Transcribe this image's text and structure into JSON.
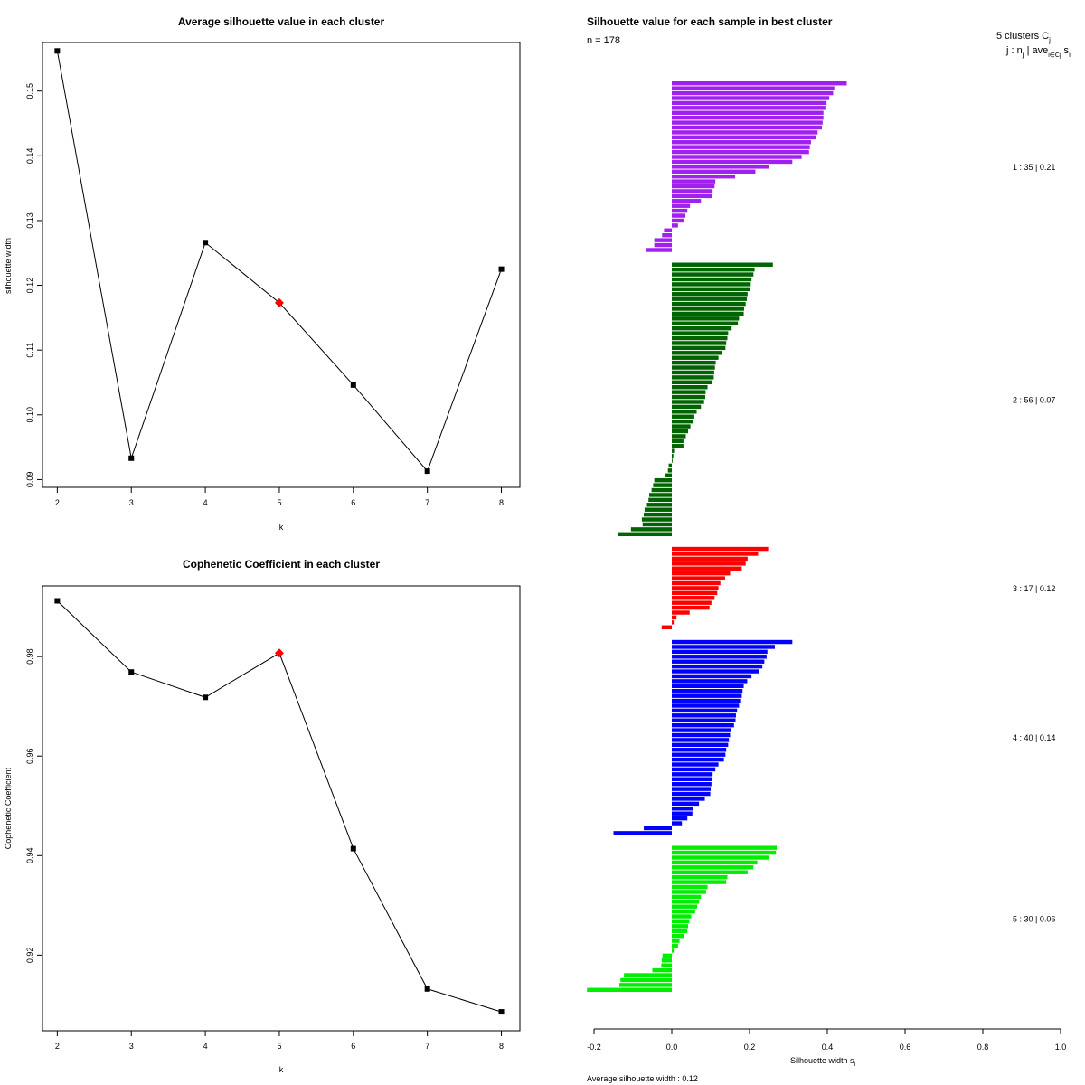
{
  "chart_data": [
    {
      "type": "line",
      "title": "Average silhouette value in each cluster",
      "xlabel": "k",
      "ylabel": "silhouette width",
      "x": [
        2,
        3,
        4,
        5,
        6,
        7,
        8
      ],
      "values": [
        0.1562,
        0.0933,
        0.1266,
        0.1173,
        0.1046,
        0.0913,
        0.1225
      ],
      "highlight_x": 5,
      "xlim": [
        1.8,
        8.25
      ],
      "ylim": [
        0.0888,
        0.1575
      ],
      "xticks": [
        "2",
        "3",
        "4",
        "5",
        "6",
        "7",
        "8"
      ],
      "yticks": [
        {
          "v": 0.09,
          "label": "0.09"
        },
        {
          "v": 0.1,
          "label": "0.10"
        },
        {
          "v": 0.11,
          "label": "0.11"
        },
        {
          "v": 0.12,
          "label": "0.12"
        },
        {
          "v": 0.13,
          "label": "0.13"
        },
        {
          "v": 0.14,
          "label": "0.14"
        },
        {
          "v": 0.15,
          "label": "0.15"
        }
      ]
    },
    {
      "type": "line",
      "title": "Cophenetic Coefficient in each cluster",
      "xlabel": "k",
      "ylabel": "Cophenetic Coefficient",
      "x": [
        2,
        3,
        4,
        5,
        6,
        7,
        8
      ],
      "values": [
        0.9912,
        0.9769,
        0.9718,
        0.9807,
        0.9414,
        0.9132,
        0.9086
      ],
      "highlight_x": 5,
      "xlim": [
        1.8,
        8.25
      ],
      "ylim": [
        0.9048,
        0.9942
      ],
      "xticks": [
        "2",
        "3",
        "4",
        "5",
        "6",
        "7",
        "8"
      ],
      "yticks": [
        {
          "v": 0.92,
          "label": "0.92"
        },
        {
          "v": 0.94,
          "label": "0.94"
        },
        {
          "v": 0.96,
          "label": "0.96"
        },
        {
          "v": 0.98,
          "label": "0.98"
        }
      ]
    },
    {
      "type": "bar",
      "orientation": "horizontal",
      "title": "Silhouette value for each sample in best cluster",
      "n_label": "n = 178",
      "header_line1": "5  clusters  C",
      "header_line1_sub": "j",
      "header_line2": "j :  n",
      "header_line2_sub": "j",
      "header_line2_rest": " | ave",
      "header_line2_sub2": "i∈Cj",
      "header_line2_end": " s",
      "header_line2_sub3": "i",
      "xlabel": "Silhouette width s",
      "xlabel_sub": "i",
      "footer": "Average silhouette width :  0.12",
      "xlim": [
        -0.22,
        1.0
      ],
      "xticks": [
        "-0.2",
        "0.0",
        "0.2",
        "0.4",
        "0.6",
        "0.8",
        "1.0"
      ],
      "clusters": [
        {
          "label": "1 :  35  |  0.21",
          "color": "#a020f0",
          "values": [
            0.45,
            0.418,
            0.415,
            0.405,
            0.398,
            0.395,
            0.39,
            0.39,
            0.388,
            0.386,
            0.375,
            0.37,
            0.358,
            0.355,
            0.353,
            0.334,
            0.31,
            0.25,
            0.215,
            0.163,
            0.112,
            0.11,
            0.105,
            0.103,
            0.075,
            0.047,
            0.04,
            0.035,
            0.03,
            0.016,
            -0.02,
            -0.025,
            -0.045,
            -0.045,
            -0.065
          ]
        },
        {
          "label": "2 :  56  |  0.07",
          "color": "#006400",
          "values": [
            0.26,
            0.213,
            0.21,
            0.205,
            0.203,
            0.2,
            0.195,
            0.193,
            0.19,
            0.186,
            0.185,
            0.173,
            0.17,
            0.154,
            0.145,
            0.143,
            0.14,
            0.138,
            0.13,
            0.12,
            0.113,
            0.111,
            0.109,
            0.108,
            0.104,
            0.092,
            0.087,
            0.086,
            0.083,
            0.075,
            0.064,
            0.058,
            0.056,
            0.048,
            0.042,
            0.036,
            0.03,
            0.03,
            0.006,
            0.004,
            0.002,
            -0.008,
            -0.01,
            -0.018,
            -0.045,
            -0.048,
            -0.052,
            -0.058,
            -0.06,
            -0.064,
            -0.07,
            -0.072,
            -0.077,
            -0.075,
            -0.105,
            -0.138
          ]
        },
        {
          "label": "3 :  17  |  0.12",
          "color": "#ff0000",
          "values": [
            0.248,
            0.222,
            0.195,
            0.19,
            0.18,
            0.15,
            0.137,
            0.125,
            0.12,
            0.117,
            0.11,
            0.102,
            0.097,
            0.046,
            0.012,
            0.005,
            -0.026
          ]
        },
        {
          "label": "4 :  40  |  0.14",
          "color": "#0000ff",
          "values": [
            0.31,
            0.265,
            0.246,
            0.244,
            0.238,
            0.233,
            0.225,
            0.205,
            0.194,
            0.185,
            0.182,
            0.18,
            0.176,
            0.173,
            0.168,
            0.165,
            0.164,
            0.16,
            0.152,
            0.15,
            0.147,
            0.145,
            0.14,
            0.138,
            0.134,
            0.12,
            0.112,
            0.105,
            0.103,
            0.102,
            0.1,
            0.099,
            0.085,
            0.07,
            0.055,
            0.053,
            0.04,
            0.026,
            -0.072,
            -0.15
          ]
        },
        {
          "label": "5 :  30  |  0.06",
          "color": "#00ee00",
          "values": [
            0.27,
            0.268,
            0.25,
            0.22,
            0.21,
            0.195,
            0.143,
            0.14,
            0.092,
            0.088,
            0.075,
            0.07,
            0.065,
            0.06,
            0.05,
            0.045,
            0.042,
            0.04,
            0.032,
            0.02,
            0.016,
            0.005,
            -0.024,
            -0.026,
            -0.027,
            -0.05,
            -0.123,
            -0.132,
            -0.135,
            -0.218
          ]
        }
      ]
    }
  ]
}
